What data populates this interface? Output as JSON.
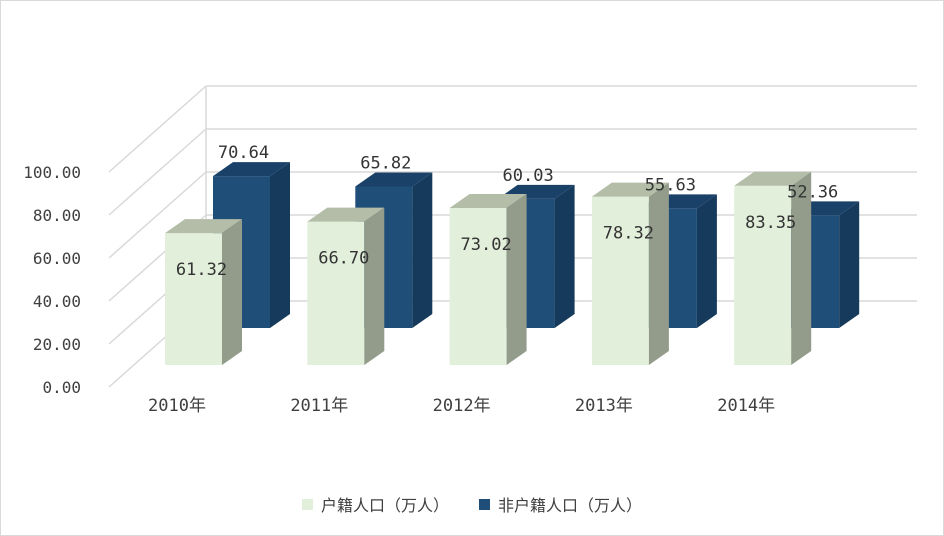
{
  "chart_data": {
    "type": "bar",
    "title": "",
    "xlabel": "",
    "ylabel": "",
    "ylim": [
      0,
      100
    ],
    "y_ticks": [
      "0.00",
      "20.00",
      "40.00",
      "60.00",
      "80.00",
      "100.00"
    ],
    "categories": [
      "2010年",
      "2011年",
      "2012年",
      "2013年",
      "2014年"
    ],
    "series": [
      {
        "name": "户籍人口（万人）",
        "values": [
          61.32,
          66.7,
          73.02,
          78.32,
          83.35
        ],
        "labels": [
          "61.32",
          "66.70",
          "73.02",
          "78.32",
          "83.35"
        ],
        "color": "#e2efda",
        "side_color": "#939c8b",
        "top_color": "#b3bda7"
      },
      {
        "name": "非户籍人口（万人）",
        "values": [
          70.64,
          65.82,
          60.03,
          55.63,
          52.36
        ],
        "labels": [
          "70.64",
          "65.82",
          "60.03",
          "55.63",
          "52.36"
        ],
        "color": "#1f4e79",
        "side_color": "#163a5b",
        "top_color": "#1a4168"
      }
    ],
    "grid": true,
    "legend_position": "bottom"
  }
}
